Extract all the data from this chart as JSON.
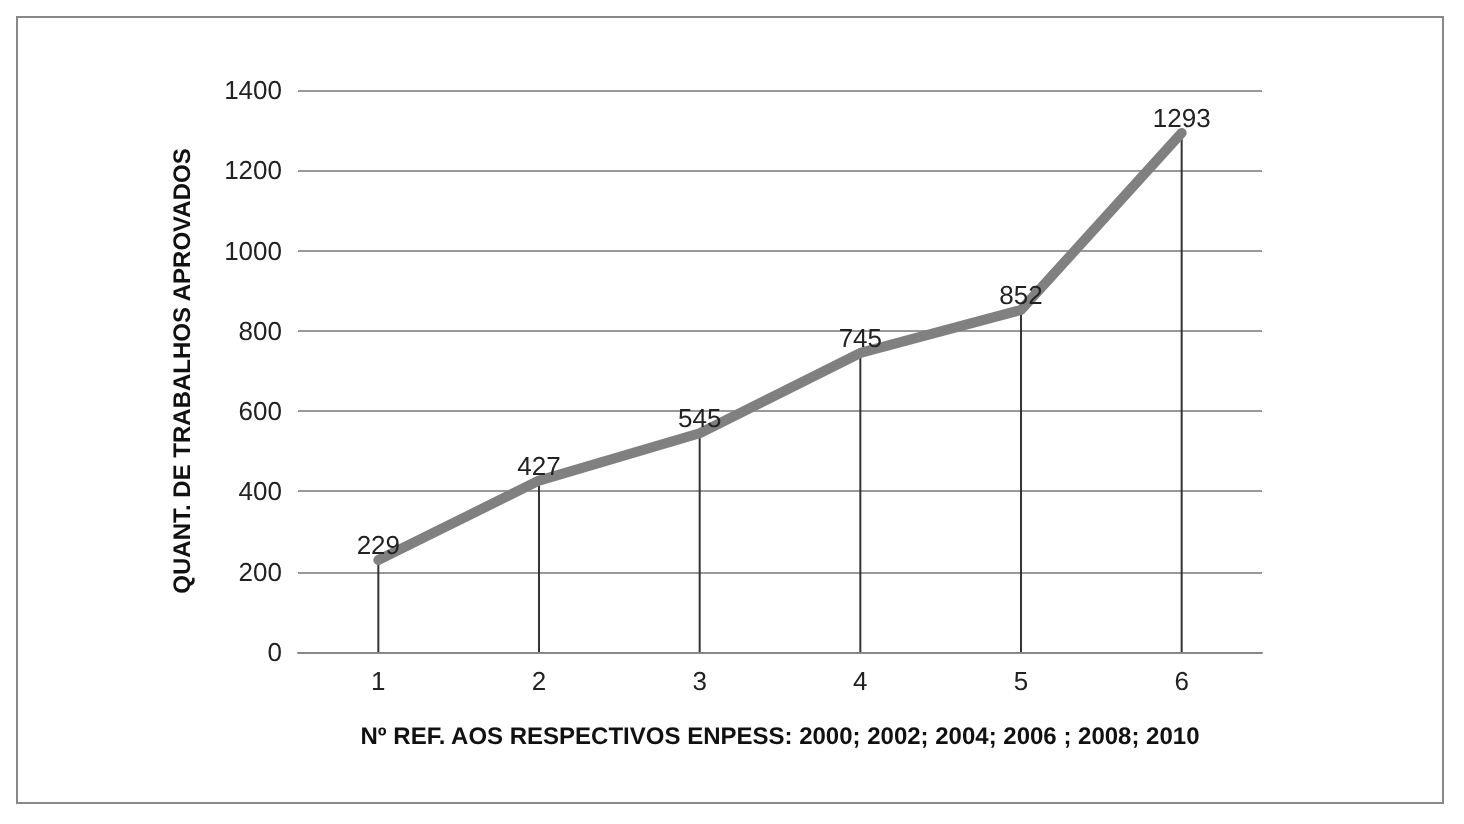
{
  "chart_data": {
    "type": "line",
    "xlabel": "Nº REF. AOS RESPECTIVOS ENPESS: 2000; 2002; 2004; 2006 ; 2008; 2010",
    "ylabel": "QUANT. DE TRABALHOS APROVADOS",
    "categories": [
      "1",
      "2",
      "3",
      "4",
      "5",
      "6"
    ],
    "series": [
      {
        "type": "bar",
        "color": "#333333",
        "values": [
          229,
          427,
          545,
          745,
          852,
          1293
        ]
      },
      {
        "color": "#808080",
        "values": [
          229,
          427,
          545,
          745,
          852,
          1293
        ],
        "value_labels": [
          "229",
          "427",
          "545",
          "745",
          "852",
          "1293"
        ]
      }
    ],
    "ylim": [
      0,
      1400
    ],
    "yticks": [
      0,
      200,
      400,
      600,
      800,
      1000,
      1200,
      1400
    ],
    "grid": "y",
    "marker": "none",
    "line_style": "solid"
  }
}
